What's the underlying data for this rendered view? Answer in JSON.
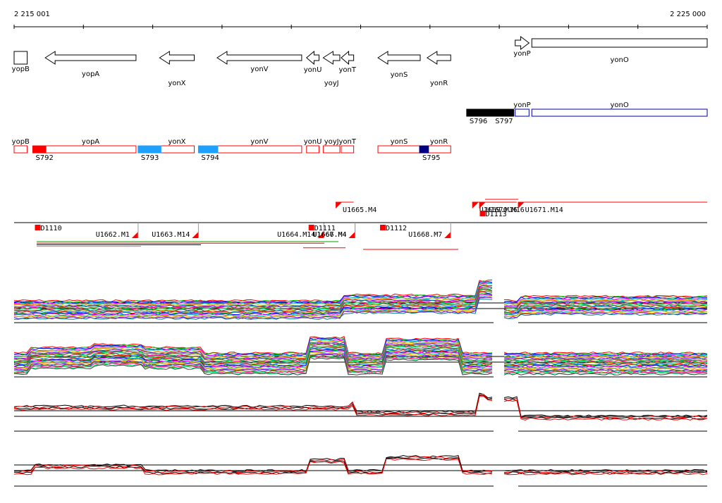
{
  "coords": {
    "start_label": "2 215 001",
    "end_label": "2 225 000",
    "start": 2215001,
    "end": 2225000
  },
  "genes": [
    {
      "name": "yopB",
      "strand": "+",
      "start": 2215001,
      "end": 2215190
    },
    {
      "name": "yopA",
      "strand": "-",
      "start": 2215450,
      "end": 2216760
    },
    {
      "name": "yonX",
      "strand": "-",
      "start": 2217100,
      "end": 2217600
    },
    {
      "name": "yonV",
      "strand": "-",
      "start": 2217930,
      "end": 2219150
    },
    {
      "name": "yonU",
      "strand": "-",
      "start": 2219220,
      "end": 2219400
    },
    {
      "name": "yoyJ",
      "strand": "-",
      "start": 2219460,
      "end": 2219700
    },
    {
      "name": "yonT",
      "strand": "-",
      "start": 2219720,
      "end": 2219900
    },
    {
      "name": "yonS",
      "strand": "-",
      "start": 2220250,
      "end": 2220860
    },
    {
      "name": "yonR",
      "strand": "-",
      "start": 2220960,
      "end": 2221300
    },
    {
      "name": "yonP",
      "strand": "+",
      "start": 2222230,
      "end": 2222430
    },
    {
      "name": "yonO",
      "strand": "+",
      "start": 2222470,
      "end": 2225000
    }
  ],
  "segments": [
    {
      "label": "S792",
      "start": 2215270,
      "end": 2215460,
      "color": "#ff0000"
    },
    {
      "label": "S793",
      "start": 2216790,
      "end": 2217120,
      "color": "#1ea0ff"
    },
    {
      "label": "S794",
      "start": 2217660,
      "end": 2217940,
      "color": "#1ea0ff"
    },
    {
      "label": "S795",
      "start": 2220850,
      "end": 2220980,
      "color": "#000080"
    },
    {
      "label": "S796",
      "start": 2221530,
      "end": 2221900,
      "color": "#000000"
    },
    {
      "label": "S797",
      "start": 2221900,
      "end": 2222210,
      "color": "#000000"
    }
  ],
  "features": [
    {
      "label": "D1110",
      "start": 2215301,
      "end": 2215401
    },
    {
      "label": "U1662.M1",
      "start": 2216180,
      "end": 2216790
    },
    {
      "label": "U1663.M14",
      "start": 2217010,
      "end": 2217660
    },
    {
      "label": "U1664.M14",
      "start": 2218870,
      "end": 2219470
    },
    {
      "label": "D1111",
      "start": 2219250,
      "end": 2219330
    },
    {
      "label": "U1665.M4",
      "start": 2219640,
      "end": 2219900
    },
    {
      "label": "U1666.M4",
      "start": 2219300,
      "end": 2219920
    },
    {
      "label": "U1667.M4",
      "start": 2219600,
      "end": 2219920
    },
    {
      "label": "D1112",
      "start": 2220280,
      "end": 2220370
    },
    {
      "label": "U1668.M7",
      "start": 2220720,
      "end": 2221300
    },
    {
      "label": "U1669.M16",
      "start": 2221610,
      "end": 2222250
    },
    {
      "label": "U1670.M16",
      "start": 2221710,
      "end": 2222250
    },
    {
      "label": "D1113",
      "start": 2221720,
      "end": 2222100
    },
    {
      "label": "U1671.M14",
      "start": 2222270,
      "end": 2225000
    }
  ],
  "colors": {
    "gene_outline": "#000000",
    "gene_red": "#ff0000",
    "gene_blue": "#0000a0",
    "accent_blue": "#1ea0ff"
  }
}
